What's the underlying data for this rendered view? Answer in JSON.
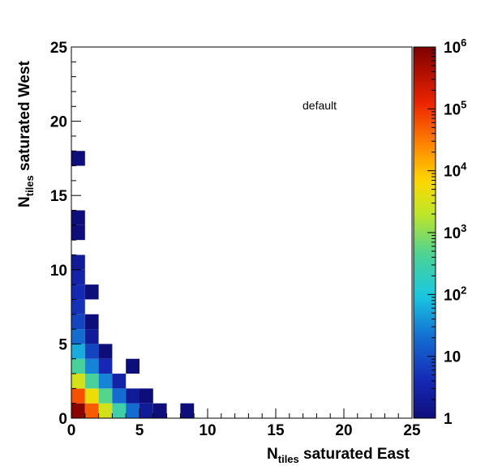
{
  "chart_data": {
    "type": "heatmap",
    "title": "",
    "annotation": "default",
    "xlabel": {
      "main": "N",
      "sub": "tiles",
      "rest": " saturated East"
    },
    "ylabel": {
      "main": "N",
      "sub": "tiles",
      "rest": " saturated West"
    },
    "xlim": [
      0,
      25
    ],
    "ylim": [
      0,
      25
    ],
    "x_ticks": [
      "0",
      "5",
      "10",
      "15",
      "20",
      "25"
    ],
    "y_ticks": [
      "0",
      "5",
      "10",
      "15",
      "20",
      "25"
    ],
    "bin_width": 1,
    "z_scale": "log",
    "zlim": [
      1,
      1000000
    ],
    "z_tick_labels": [
      {
        "base": "1",
        "exp": "",
        "value": 1
      },
      {
        "base": "10",
        "exp": "",
        "value": 10
      },
      {
        "base": "10",
        "exp": "2",
        "value": 100
      },
      {
        "base": "10",
        "exp": "3",
        "value": 1000
      },
      {
        "base": "10",
        "exp": "4",
        "value": 10000
      },
      {
        "base": "10",
        "exp": "5",
        "value": 100000
      },
      {
        "base": "10",
        "exp": "6",
        "value": 1000000
      }
    ],
    "cells": [
      {
        "x": 0,
        "y": 0,
        "z": 800000
      },
      {
        "x": 1,
        "y": 0,
        "z": 50000
      },
      {
        "x": 2,
        "y": 0,
        "z": 3000
      },
      {
        "x": 3,
        "y": 0,
        "z": 300
      },
      {
        "x": 4,
        "y": 0,
        "z": 20
      },
      {
        "x": 5,
        "y": 0,
        "z": 2
      },
      {
        "x": 6,
        "y": 0,
        "z": 1
      },
      {
        "x": 8,
        "y": 0,
        "z": 1
      },
      {
        "x": 0,
        "y": 1,
        "z": 60000
      },
      {
        "x": 1,
        "y": 1,
        "z": 5000
      },
      {
        "x": 2,
        "y": 1,
        "z": 500
      },
      {
        "x": 3,
        "y": 1,
        "z": 20
      },
      {
        "x": 4,
        "y": 1,
        "z": 2
      },
      {
        "x": 5,
        "y": 1,
        "z": 1
      },
      {
        "x": 0,
        "y": 2,
        "z": 3000
      },
      {
        "x": 1,
        "y": 2,
        "z": 400
      },
      {
        "x": 2,
        "y": 2,
        "z": 30
      },
      {
        "x": 3,
        "y": 2,
        "z": 3
      },
      {
        "x": 0,
        "y": 3,
        "z": 400
      },
      {
        "x": 1,
        "y": 3,
        "z": 30
      },
      {
        "x": 2,
        "y": 3,
        "z": 4
      },
      {
        "x": 4,
        "y": 3,
        "z": 1
      },
      {
        "x": 0,
        "y": 4,
        "z": 60
      },
      {
        "x": 1,
        "y": 4,
        "z": 8
      },
      {
        "x": 2,
        "y": 4,
        "z": 1
      },
      {
        "x": 0,
        "y": 5,
        "z": 20
      },
      {
        "x": 1,
        "y": 5,
        "z": 2
      },
      {
        "x": 0,
        "y": 6,
        "z": 8
      },
      {
        "x": 1,
        "y": 6,
        "z": 1
      },
      {
        "x": 0,
        "y": 7,
        "z": 5
      },
      {
        "x": 0,
        "y": 8,
        "z": 4
      },
      {
        "x": 1,
        "y": 8,
        "z": 1
      },
      {
        "x": 0,
        "y": 9,
        "z": 3
      },
      {
        "x": 0,
        "y": 10,
        "z": 2
      },
      {
        "x": 0,
        "y": 12,
        "z": 1
      },
      {
        "x": 0,
        "y": 13,
        "z": 1
      },
      {
        "x": 0,
        "y": 17,
        "z": 1
      }
    ]
  }
}
